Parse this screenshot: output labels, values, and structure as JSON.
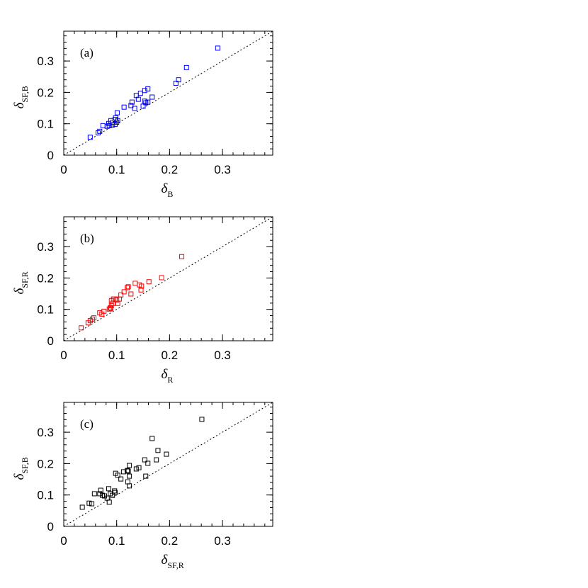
{
  "chart_data": [
    {
      "type": "scatter",
      "panel_label": "(a)",
      "xlabel": "δ",
      "xlabel_subscript": "B",
      "ylabel": "δ",
      "ylabel_subscript": "SF,B",
      "color": "#0000ff",
      "diagonal": true,
      "xlim": [
        0,
        0.395
      ],
      "ylim": [
        0,
        0.395
      ],
      "xticks": [
        0,
        0.1,
        0.2,
        0.3
      ],
      "yticks": [
        0,
        0.1,
        0.2,
        0.3
      ],
      "x": [
        0.05,
        0.065,
        0.068,
        0.074,
        0.082,
        0.085,
        0.089,
        0.086,
        0.092,
        0.093,
        0.097,
        0.097,
        0.098,
        0.101,
        0.102,
        0.1,
        0.114,
        0.127,
        0.129,
        0.134,
        0.137,
        0.141,
        0.145,
        0.15,
        0.153,
        0.153,
        0.155,
        0.159,
        0.159,
        0.167,
        0.212,
        0.217,
        0.232,
        0.291
      ],
      "values": [
        0.057,
        0.071,
        0.076,
        0.094,
        0.092,
        0.101,
        0.11,
        0.094,
        0.096,
        0.105,
        0.098,
        0.114,
        0.119,
        0.135,
        0.11,
        0.105,
        0.153,
        0.158,
        0.169,
        0.149,
        0.19,
        0.178,
        0.197,
        0.156,
        0.206,
        0.172,
        0.167,
        0.211,
        0.169,
        0.185,
        0.229,
        0.24,
        0.279,
        0.341
      ]
    },
    {
      "type": "scatter",
      "panel_label": "(b)",
      "xlabel": "δ",
      "xlabel_subscript": "R",
      "ylabel": "δ",
      "ylabel_subscript": "SF,R",
      "color": "#ff0000",
      "diagonal": true,
      "xlim": [
        0,
        0.395
      ],
      "ylim": [
        0,
        0.395
      ],
      "xticks": [
        0,
        0.1,
        0.2,
        0.3
      ],
      "yticks": [
        0,
        0.1,
        0.2,
        0.3
      ],
      "x": [
        0.033,
        0.046,
        0.05,
        0.054,
        0.057,
        0.068,
        0.072,
        0.076,
        0.086,
        0.088,
        0.089,
        0.09,
        0.09,
        0.093,
        0.094,
        0.097,
        0.1,
        0.102,
        0.105,
        0.108,
        0.114,
        0.12,
        0.122,
        0.127,
        0.135,
        0.143,
        0.146,
        0.147,
        0.161,
        0.185,
        0.223
      ],
      "values": [
        0.041,
        0.057,
        0.064,
        0.069,
        0.073,
        0.089,
        0.085,
        0.094,
        0.101,
        0.105,
        0.103,
        0.112,
        0.128,
        0.119,
        0.133,
        0.133,
        0.13,
        0.119,
        0.133,
        0.146,
        0.156,
        0.169,
        0.172,
        0.149,
        0.183,
        0.178,
        0.162,
        0.174,
        0.188,
        0.201,
        0.268
      ]
    },
    {
      "type": "scatter",
      "panel_label": "(c)",
      "xlabel": "δ",
      "xlabel_subscript": "SF,R",
      "ylabel": "δ",
      "ylabel_subscript": "SF,B",
      "color": "#000000",
      "diagonal": true,
      "xlim": [
        0,
        0.395
      ],
      "ylim": [
        0,
        0.395
      ],
      "xticks": [
        0,
        0.1,
        0.2,
        0.3
      ],
      "yticks": [
        0,
        0.1,
        0.2,
        0.3
      ],
      "x": [
        0.035,
        0.048,
        0.053,
        0.058,
        0.068,
        0.07,
        0.073,
        0.077,
        0.082,
        0.085,
        0.086,
        0.088,
        0.092,
        0.096,
        0.097,
        0.098,
        0.102,
        0.108,
        0.113,
        0.12,
        0.121,
        0.122,
        0.124,
        0.124,
        0.124,
        0.137,
        0.142,
        0.153,
        0.155,
        0.159,
        0.167,
        0.175,
        0.178,
        0.194,
        0.261
      ],
      "values": [
        0.061,
        0.074,
        0.072,
        0.104,
        0.104,
        0.115,
        0.099,
        0.097,
        0.09,
        0.12,
        0.077,
        0.104,
        0.099,
        0.113,
        0.108,
        0.169,
        0.163,
        0.151,
        0.174,
        0.178,
        0.142,
        0.176,
        0.129,
        0.16,
        0.194,
        0.183,
        0.187,
        0.212,
        0.16,
        0.201,
        0.28,
        0.212,
        0.242,
        0.23,
        0.341
      ]
    }
  ]
}
